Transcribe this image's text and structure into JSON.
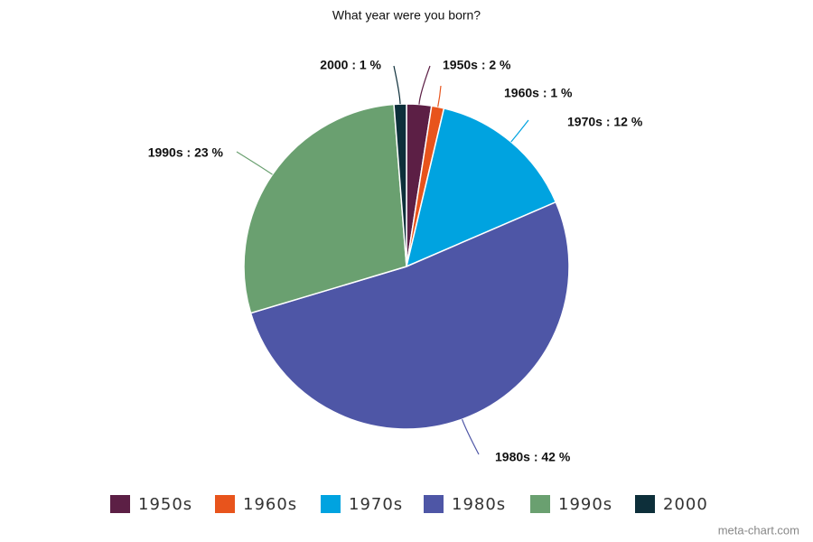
{
  "chart_data": {
    "type": "pie",
    "title": "What year were you born?",
    "categories": [
      "1950s",
      "1960s",
      "1970s",
      "1980s",
      "1990s",
      "2000"
    ],
    "values": [
      2,
      1,
      12,
      42,
      23,
      1
    ],
    "value_labels": [
      "1950s : 2 %",
      "1960s : 1 %",
      "1970s : 12 %",
      "1980s : 42 %",
      "1990s : 23 %",
      "2000 : 1 %"
    ],
    "colors": [
      "#5c1f45",
      "#e8541c",
      "#00a3e0",
      "#4e56a6",
      "#6aa070",
      "#0d2f3a"
    ],
    "legend": "bottom"
  },
  "watermark": "meta-chart.com"
}
